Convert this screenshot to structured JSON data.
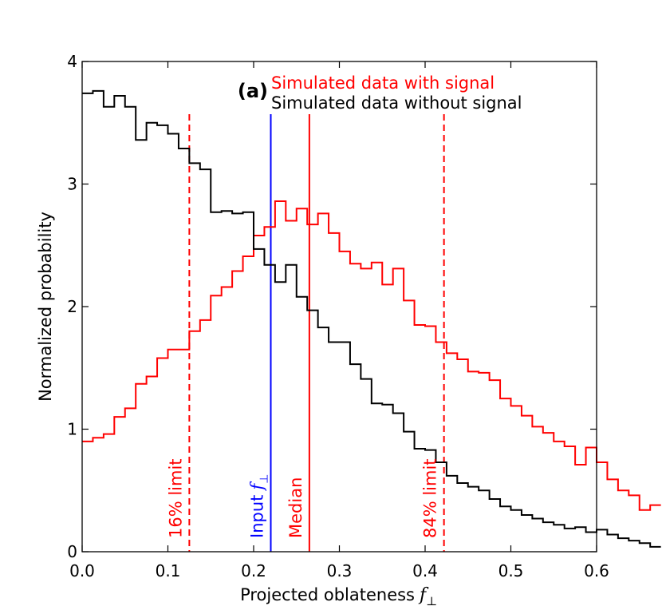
{
  "chart_data": {
    "type": "histogram",
    "panel_label": "(a)",
    "xlabel": "Projected oblateness",
    "xlabel_symbol": "f",
    "xlabel_subscript": "⊥",
    "ylabel": "Normalized probability",
    "xlim": [
      0,
      0.6
    ],
    "ylim": [
      0,
      4
    ],
    "xticks": [
      "0.0",
      "0.1",
      "0.2",
      "0.3",
      "0.4",
      "0.5",
      "0.6"
    ],
    "yticks": [
      "0",
      "1",
      "2",
      "3",
      "4"
    ],
    "bin_width": 0.0125,
    "series": [
      {
        "name": "Simulated data with signal",
        "color": "#ff0000",
        "values": [
          0.9,
          0.93,
          0.96,
          1.1,
          1.17,
          1.37,
          1.43,
          1.58,
          1.65,
          1.65,
          1.8,
          1.89,
          2.09,
          2.16,
          2.29,
          2.41,
          2.58,
          2.65,
          2.86,
          2.7,
          2.8,
          2.67,
          2.76,
          2.6,
          2.45,
          2.35,
          2.31,
          2.36,
          2.18,
          2.31,
          2.05,
          1.85,
          1.84,
          1.71,
          1.62,
          1.57,
          1.47,
          1.46,
          1.4,
          1.25,
          1.19,
          1.11,
          1.02,
          0.97,
          0.9,
          0.86,
          0.71,
          0.85,
          0.73,
          0.59,
          0.5,
          0.46,
          0.34,
          0.38
        ]
      },
      {
        "name": "Simulated data without signal",
        "color": "#000000",
        "values": [
          3.74,
          3.76,
          3.63,
          3.72,
          3.63,
          3.36,
          3.5,
          3.48,
          3.41,
          3.29,
          3.17,
          3.12,
          2.77,
          2.78,
          2.76,
          2.77,
          2.47,
          2.34,
          2.2,
          2.34,
          2.08,
          1.97,
          1.83,
          1.71,
          1.71,
          1.53,
          1.41,
          1.21,
          1.2,
          1.13,
          0.98,
          0.84,
          0.83,
          0.73,
          0.62,
          0.56,
          0.53,
          0.5,
          0.43,
          0.37,
          0.34,
          0.3,
          0.27,
          0.24,
          0.22,
          0.19,
          0.2,
          0.16,
          0.18,
          0.14,
          0.11,
          0.09,
          0.07,
          0.04
        ]
      }
    ],
    "reference_lines": [
      {
        "label": "16% limit",
        "x": 0.125,
        "color": "#ff0000",
        "style": "dashed"
      },
      {
        "label": "Input",
        "x": 0.22,
        "color": "#0000ff",
        "style": "solid",
        "symbol": "f",
        "subscript": "⊥"
      },
      {
        "label": "Median",
        "x": 0.265,
        "color": "#ff0000",
        "style": "solid"
      },
      {
        "label": "84% limit",
        "x": 0.422,
        "color": "#ff0000",
        "style": "dashed"
      }
    ]
  }
}
